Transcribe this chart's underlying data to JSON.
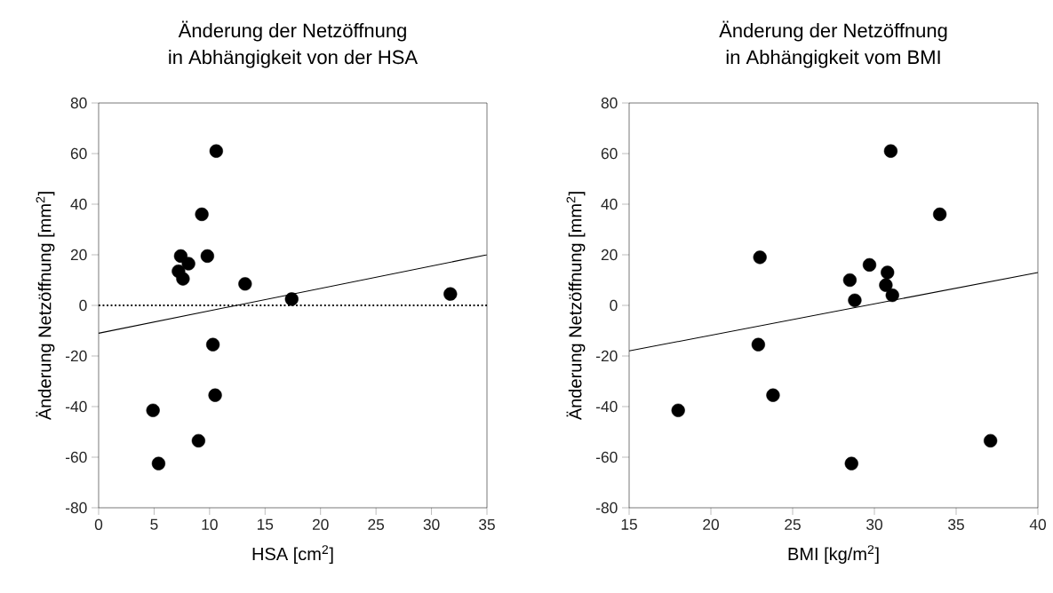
{
  "chart_data": [
    {
      "type": "scatter",
      "title": "Änderung der Netzöffnung",
      "subtitle": "in Abhängigkeit von der HSA",
      "xlabel": "HSA [cm$^{2}$]",
      "ylabel": "Änderung Netzöffnung [mm$^{2}$]",
      "xlim": [
        0,
        35
      ],
      "xticks": [
        0,
        5,
        10,
        15,
        20,
        25,
        30,
        35
      ],
      "ylim": [
        -80,
        80
      ],
      "yticks": [
        -80,
        -60,
        -40,
        -20,
        0,
        20,
        40,
        60,
        80
      ],
      "ref_lines": [
        {
          "axis": "y",
          "value": 0,
          "line_style": "dotted",
          "color": "#000000"
        }
      ],
      "series": [
        {
          "type": "scatter",
          "marker": "circle",
          "color": "#000000",
          "x": [
            10.6,
            9.3,
            7.4,
            9.8,
            8.1,
            7.2,
            7.6,
            13.2,
            17.4,
            31.7,
            10.3,
            10.5,
            4.9,
            9.0,
            5.4
          ],
          "values": [
            61,
            36,
            19.5,
            19.5,
            16.5,
            13.5,
            10.5,
            8.5,
            2.5,
            4.5,
            -15.5,
            -35.5,
            -41.5,
            -53.5,
            -62.5
          ]
        },
        {
          "type": "line",
          "color": "#000000",
          "marker": "none",
          "line_style": "solid",
          "x": [
            0,
            35
          ],
          "values": [
            -11,
            20
          ]
        }
      ]
    },
    {
      "type": "scatter",
      "title": "Änderung der Netzöffnung",
      "subtitle": "in Abhängigkeit vom BMI",
      "xlabel": "BMI [kg/m$^{2}$]",
      "ylabel": "Änderung Netzöffnung [mm$^{2}$]",
      "xlim": [
        15,
        40
      ],
      "xticks": [
        15,
        20,
        25,
        30,
        35,
        40
      ],
      "ylim": [
        -80,
        80
      ],
      "yticks": [
        -80,
        -60,
        -40,
        -20,
        0,
        20,
        40,
        60,
        80
      ],
      "series": [
        {
          "type": "scatter",
          "marker": "circle",
          "color": "#000000",
          "x": [
            31.0,
            34.0,
            23.0,
            29.7,
            30.8,
            28.5,
            30.7,
            31.1,
            28.8,
            22.9,
            23.8,
            18.0,
            37.1,
            28.6
          ],
          "values": [
            61,
            36,
            19,
            16,
            13,
            10,
            8,
            4,
            2,
            -15.5,
            -35.5,
            -41.5,
            -53.5,
            -62.5
          ]
        },
        {
          "type": "line",
          "color": "#000000",
          "marker": "none",
          "line_style": "solid",
          "x": [
            15,
            40
          ],
          "values": [
            -18,
            13
          ]
        }
      ]
    }
  ]
}
